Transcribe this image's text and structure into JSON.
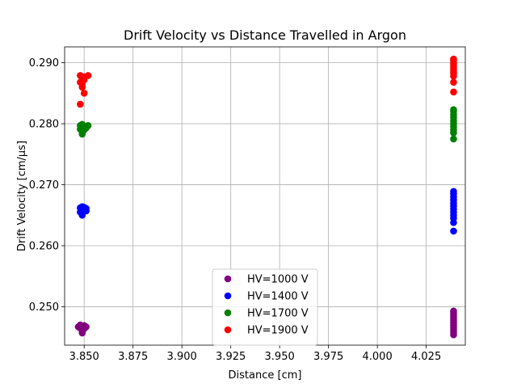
{
  "chart_data": {
    "type": "scatter",
    "title": "Drift Velocity vs Distance Travelled in Argon",
    "xlabel": "Distance [cm]",
    "ylabel": "Drift Velocity [cm/μs]",
    "xlim": [
      3.84,
      4.045
    ],
    "ylim": [
      0.2437,
      0.2926
    ],
    "xticks": [
      "3.850",
      "3.875",
      "3.900",
      "3.925",
      "3.950",
      "3.975",
      "4.000",
      "4.025"
    ],
    "yticks": [
      "0.250",
      "0.260",
      "0.270",
      "0.280",
      "0.290"
    ],
    "grid": true,
    "legend_position": "bottom-center",
    "series": [
      {
        "name": "HV=1000 V",
        "color": "#800080",
        "points": [
          [
            3.847,
            0.2467
          ],
          [
            3.848,
            0.2465
          ],
          [
            3.849,
            0.2467
          ],
          [
            3.849,
            0.2461
          ],
          [
            3.849,
            0.2457
          ],
          [
            3.85,
            0.2464
          ],
          [
            3.85,
            0.2469
          ],
          [
            3.851,
            0.2467
          ],
          [
            3.848,
            0.247
          ],
          [
            3.849,
            0.2463
          ],
          [
            4.039,
            0.2454
          ],
          [
            4.039,
            0.2458
          ],
          [
            4.039,
            0.2462
          ],
          [
            4.039,
            0.2466
          ],
          [
            4.039,
            0.247
          ],
          [
            4.039,
            0.2474
          ],
          [
            4.039,
            0.2478
          ],
          [
            4.039,
            0.2482
          ],
          [
            4.039,
            0.2486
          ],
          [
            4.039,
            0.249
          ],
          [
            4.039,
            0.2493
          ]
        ]
      },
      {
        "name": "HV=1400 V",
        "color": "#0000ff",
        "points": [
          [
            3.848,
            0.2662
          ],
          [
            3.849,
            0.266
          ],
          [
            3.849,
            0.2657
          ],
          [
            3.849,
            0.265
          ],
          [
            3.85,
            0.2663
          ],
          [
            3.85,
            0.2658
          ],
          [
            3.851,
            0.2661
          ],
          [
            3.848,
            0.2655
          ],
          [
            3.849,
            0.2664
          ],
          [
            3.851,
            0.2657
          ],
          [
            4.039,
            0.2624
          ],
          [
            4.039,
            0.2638
          ],
          [
            4.039,
            0.2645
          ],
          [
            4.039,
            0.265
          ],
          [
            4.039,
            0.2655
          ],
          [
            4.039,
            0.266
          ],
          [
            4.039,
            0.2665
          ],
          [
            4.039,
            0.267
          ],
          [
            4.039,
            0.2675
          ],
          [
            4.039,
            0.268
          ],
          [
            4.039,
            0.2685
          ],
          [
            4.039,
            0.2689
          ]
        ]
      },
      {
        "name": "HV=1700 V",
        "color": "#008000",
        "points": [
          [
            3.848,
            0.2797
          ],
          [
            3.849,
            0.2793
          ],
          [
            3.849,
            0.2788
          ],
          [
            3.849,
            0.2783
          ],
          [
            3.85,
            0.2796
          ],
          [
            3.85,
            0.279
          ],
          [
            3.851,
            0.2793
          ],
          [
            3.852,
            0.2797
          ],
          [
            3.848,
            0.2791
          ],
          [
            3.849,
            0.2799
          ],
          [
            4.039,
            0.2775
          ],
          [
            4.039,
            0.2785
          ],
          [
            4.039,
            0.279
          ],
          [
            4.039,
            0.2795
          ],
          [
            4.039,
            0.28
          ],
          [
            4.039,
            0.2805
          ],
          [
            4.039,
            0.281
          ],
          [
            4.039,
            0.2815
          ],
          [
            4.039,
            0.282
          ],
          [
            4.039,
            0.2823
          ]
        ]
      },
      {
        "name": "HV=1900 V",
        "color": "#ff0000",
        "points": [
          [
            3.848,
            0.2879
          ],
          [
            3.848,
            0.2832
          ],
          [
            3.849,
            0.2875
          ],
          [
            3.849,
            0.287
          ],
          [
            3.849,
            0.2865
          ],
          [
            3.849,
            0.286
          ],
          [
            3.85,
            0.285
          ],
          [
            3.85,
            0.2877
          ],
          [
            3.85,
            0.2872
          ],
          [
            3.852,
            0.2879
          ],
          [
            3.848,
            0.2868
          ],
          [
            4.039,
            0.2852
          ],
          [
            4.039,
            0.2868
          ],
          [
            4.039,
            0.2878
          ],
          [
            4.039,
            0.2883
          ],
          [
            4.039,
            0.2887
          ],
          [
            4.039,
            0.2891
          ],
          [
            4.039,
            0.2895
          ],
          [
            4.039,
            0.2899
          ],
          [
            4.039,
            0.2903
          ],
          [
            4.039,
            0.2906
          ]
        ]
      }
    ]
  }
}
